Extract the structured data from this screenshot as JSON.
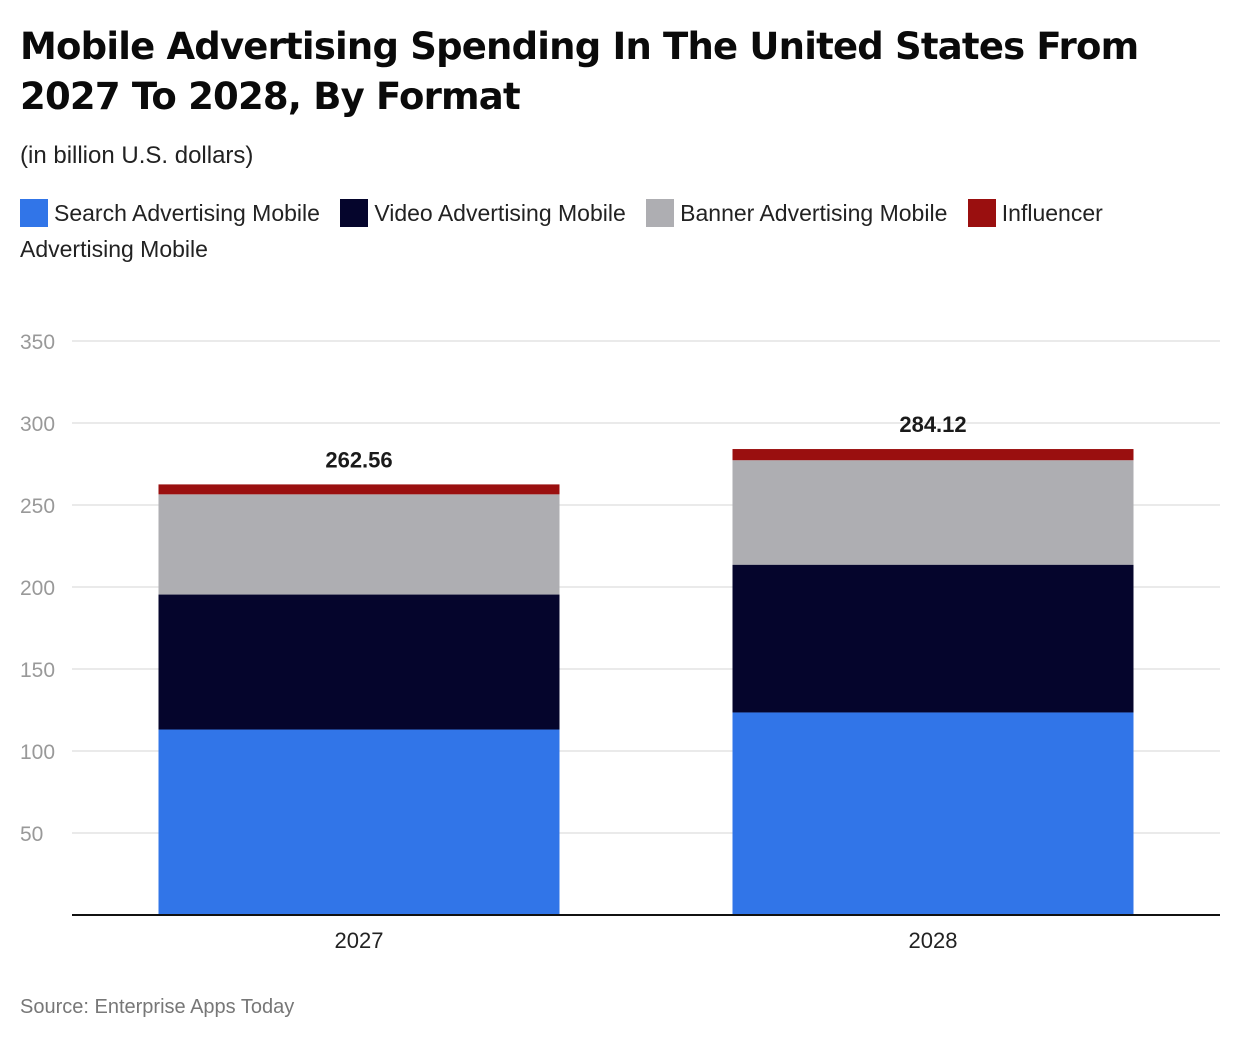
{
  "chart_data": {
    "type": "bar",
    "stacked": true,
    "title": "Mobile Advertising Spending In The United States From 2027 To 2028, By Format",
    "subtitle": "(in billion U.S. dollars)",
    "categories": [
      "2027",
      "2028"
    ],
    "series": [
      {
        "name": "Search Advertising Mobile",
        "color": "#3175e8",
        "values": [
          113.1,
          123.5
        ]
      },
      {
        "name": "Video Advertising Mobile",
        "color": "#05052c",
        "values": [
          82.3,
          90.1
        ]
      },
      {
        "name": "Banner Advertising Mobile",
        "color": "#aeaeb2",
        "values": [
          61.1,
          63.7
        ]
      },
      {
        "name": "Influencer Advertising Mobile",
        "color": "#9a0f0f",
        "values": [
          6.06,
          6.82
        ]
      }
    ],
    "totals": [
      "262.56",
      "284.12"
    ],
    "ylim": [
      0,
      350
    ],
    "yticks": [
      50,
      100,
      150,
      200,
      250,
      300,
      350
    ],
    "xlabel": "",
    "ylabel": "",
    "grid": true,
    "legend_position": "top"
  },
  "source": "Source: Enterprise Apps Today"
}
